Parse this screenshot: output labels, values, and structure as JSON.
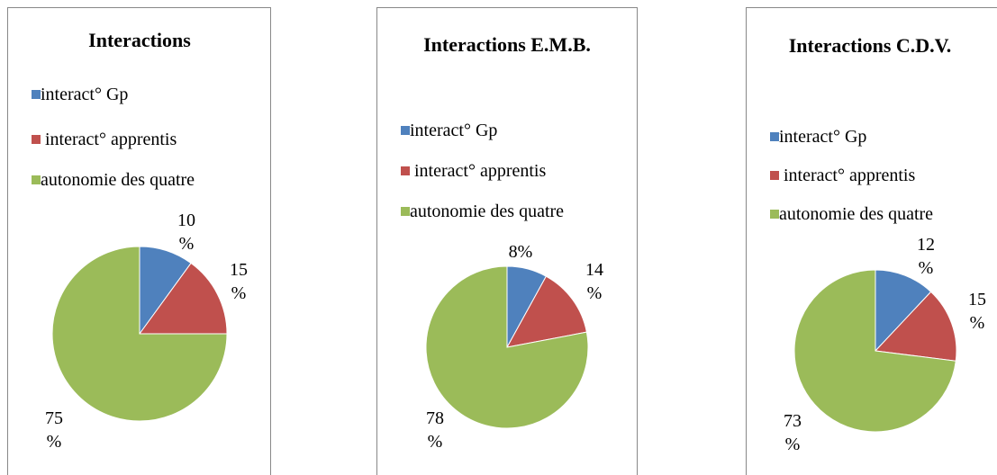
{
  "chart_data": [
    {
      "type": "pie",
      "title": "Interactions",
      "categories": [
        "interact° Gp",
        " interact° apprentis",
        "autonomie des quatre"
      ],
      "values": [
        10,
        15,
        75
      ],
      "value_labels": [
        "10 %",
        "15 %",
        "75 %"
      ],
      "colors": [
        "#4f81bd",
        "#c0504d",
        "#9bbb59"
      ]
    },
    {
      "type": "pie",
      "title": "Interactions E.M.B.",
      "categories": [
        "interact° Gp",
        " interact° apprentis",
        "autonomie des quatre"
      ],
      "values": [
        8,
        14,
        78
      ],
      "value_labels": [
        "8%",
        "14 %",
        "78 %"
      ],
      "colors": [
        "#4f81bd",
        "#c0504d",
        "#9bbb59"
      ]
    },
    {
      "type": "pie",
      "title": "Interactions C.D.V.",
      "categories": [
        "interact° Gp",
        " interact° apprentis",
        "autonomie des quatre"
      ],
      "values": [
        12,
        15,
        73
      ],
      "value_labels": [
        "12 %",
        "15 %",
        "73 %"
      ],
      "colors": [
        "#4f81bd",
        "#c0504d",
        "#9bbb59"
      ]
    }
  ]
}
